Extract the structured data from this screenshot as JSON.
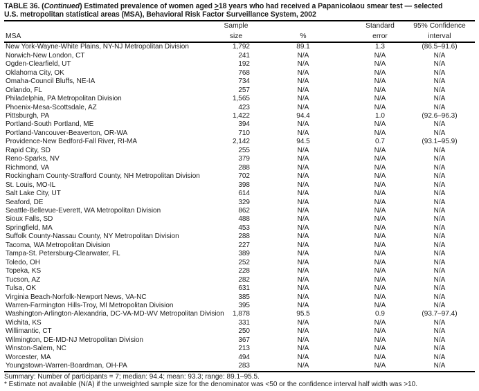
{
  "colors": {
    "ink": "#1a1a1a",
    "background": "#ffffff"
  },
  "title": {
    "part1": "TABLE 36. (",
    "continued": "Continued",
    "part2": ") Estimated prevalence of women aged ",
    "geq_symbol": ">",
    "part3": "18 years who had received a Papanicolaou smear test — selected",
    "line2": "U.S. metropolitan statistical areas (MSA), Behavioral Risk Factor Surveillance System, 2002"
  },
  "table": {
    "columns": {
      "msa": "MSA",
      "sample_line1": "Sample",
      "sample_line2": "size",
      "percent": "%",
      "se_line1": "Standard",
      "se_line2": "error",
      "ci_line1": "95% Confidence",
      "ci_line2": "interval"
    },
    "rows": [
      {
        "msa": "New York-Wayne-White Plains, NY-NJ Metropolitan Division",
        "n": "1,792",
        "pct": "89.1",
        "se": "1.3",
        "ci": "(86.5–91.6)"
      },
      {
        "msa": "Norwich-New London, CT",
        "n": "241",
        "pct": "N/A",
        "se": "N/A",
        "ci": "N/A"
      },
      {
        "msa": "Ogden-Clearfield, UT",
        "n": "192",
        "pct": "N/A",
        "se": "N/A",
        "ci": "N/A"
      },
      {
        "msa": "Oklahoma City, OK",
        "n": "768",
        "pct": "N/A",
        "se": "N/A",
        "ci": "N/A"
      },
      {
        "msa": "Omaha-Council Bluffs, NE-IA",
        "n": "734",
        "pct": "N/A",
        "se": "N/A",
        "ci": "N/A"
      },
      {
        "msa": "Orlando, FL",
        "n": "257",
        "pct": "N/A",
        "se": "N/A",
        "ci": "N/A"
      },
      {
        "msa": "Philadelphia, PA Metropolitan Division",
        "n": "1,565",
        "pct": "N/A",
        "se": "N/A",
        "ci": "N/A"
      },
      {
        "msa": "Phoenix-Mesa-Scottsdale, AZ",
        "n": "423",
        "pct": "N/A",
        "se": "N/A",
        "ci": "N/A"
      },
      {
        "msa": "Pittsburgh, PA",
        "n": "1,422",
        "pct": "94.4",
        "se": "1.0",
        "ci": "(92.6–96.3)"
      },
      {
        "msa": "Portland-South Portland, ME",
        "n": "394",
        "pct": "N/A",
        "se": "N/A",
        "ci": "N/A"
      },
      {
        "msa": "Portland-Vancouver-Beaverton, OR-WA",
        "n": "710",
        "pct": "N/A",
        "se": "N/A",
        "ci": "N/A"
      },
      {
        "msa": "Providence-New Bedford-Fall River, RI-MA",
        "n": "2,142",
        "pct": "94.5",
        "se": "0.7",
        "ci": "(93.1–95.9)"
      },
      {
        "msa": "Rapid City, SD",
        "n": "255",
        "pct": "N/A",
        "se": "N/A",
        "ci": "N/A"
      },
      {
        "msa": "Reno-Sparks, NV",
        "n": "379",
        "pct": "N/A",
        "se": "N/A",
        "ci": "N/A"
      },
      {
        "msa": "Richmond, VA",
        "n": "288",
        "pct": "N/A",
        "se": "N/A",
        "ci": "N/A"
      },
      {
        "msa": "Rockingham County-Strafford County, NH Metropolitan Division",
        "n": "702",
        "pct": "N/A",
        "se": "N/A",
        "ci": "N/A"
      },
      {
        "msa": "St. Louis, MO-IL",
        "n": "398",
        "pct": "N/A",
        "se": "N/A",
        "ci": "N/A"
      },
      {
        "msa": "Salt Lake City, UT",
        "n": "614",
        "pct": "N/A",
        "se": "N/A",
        "ci": "N/A"
      },
      {
        "msa": "Seaford, DE",
        "n": "329",
        "pct": "N/A",
        "se": "N/A",
        "ci": "N/A"
      },
      {
        "msa": "Seattle-Bellevue-Everett, WA Metropolitan Division",
        "n": "862",
        "pct": "N/A",
        "se": "N/A",
        "ci": "N/A"
      },
      {
        "msa": "Sioux Falls, SD",
        "n": "488",
        "pct": "N/A",
        "se": "N/A",
        "ci": "N/A"
      },
      {
        "msa": "Springfield, MA",
        "n": "453",
        "pct": "N/A",
        "se": "N/A",
        "ci": "N/A"
      },
      {
        "msa": "Suffolk County-Nassau County, NY Metropolitan Division",
        "n": "288",
        "pct": "N/A",
        "se": "N/A",
        "ci": "N/A"
      },
      {
        "msa": "Tacoma, WA Metropolitan Division",
        "n": "227",
        "pct": "N/A",
        "se": "N/A",
        "ci": "N/A"
      },
      {
        "msa": "Tampa-St. Petersburg-Clearwater, FL",
        "n": "389",
        "pct": "N/A",
        "se": "N/A",
        "ci": "N/A"
      },
      {
        "msa": "Toledo, OH",
        "n": "252",
        "pct": "N/A",
        "se": "N/A",
        "ci": "N/A"
      },
      {
        "msa": "Topeka, KS",
        "n": "228",
        "pct": "N/A",
        "se": "N/A",
        "ci": "N/A"
      },
      {
        "msa": "Tucson, AZ",
        "n": "282",
        "pct": "N/A",
        "se": "N/A",
        "ci": "N/A"
      },
      {
        "msa": "Tulsa, OK",
        "n": "631",
        "pct": "N/A",
        "se": "N/A",
        "ci": "N/A"
      },
      {
        "msa": "Virginia Beach-Norfolk-Newport News, VA-NC",
        "n": "385",
        "pct": "N/A",
        "se": "N/A",
        "ci": "N/A"
      },
      {
        "msa": "Warren-Farmington Hills-Troy, MI Metropolitan Division",
        "n": "395",
        "pct": "N/A",
        "se": "N/A",
        "ci": "N/A"
      },
      {
        "msa": "Washington-Arlington-Alexandria, DC-VA-MD-WV Metropolitan Division",
        "n": "1,878",
        "pct": "95.5",
        "se": "0.9",
        "ci": "(93.7–97.4)"
      },
      {
        "msa": "Wichita, KS",
        "n": "331",
        "pct": "N/A",
        "se": "N/A",
        "ci": "N/A"
      },
      {
        "msa": "Willimantic, CT",
        "n": "250",
        "pct": "N/A",
        "se": "N/A",
        "ci": "N/A"
      },
      {
        "msa": "Wilmington, DE-MD-NJ Metropolitan Division",
        "n": "367",
        "pct": "N/A",
        "se": "N/A",
        "ci": "N/A"
      },
      {
        "msa": "Winston-Salem, NC",
        "n": "213",
        "pct": "N/A",
        "se": "N/A",
        "ci": "N/A"
      },
      {
        "msa": "Worcester, MA",
        "n": "494",
        "pct": "N/A",
        "se": "N/A",
        "ci": "N/A"
      },
      {
        "msa": "Youngstown-Warren-Boardman, OH-PA",
        "n": "283",
        "pct": "N/A",
        "se": "N/A",
        "ci": "N/A"
      }
    ]
  },
  "footer": {
    "summary": "Summary: Number of participants = 7; median: 94.4; mean: 93.3; range: 89.1–95.5.",
    "footnote": "* Estimate not available (N/A) if the unweighted sample size for the denominator was <50 or the confidence interval half width was >10."
  }
}
